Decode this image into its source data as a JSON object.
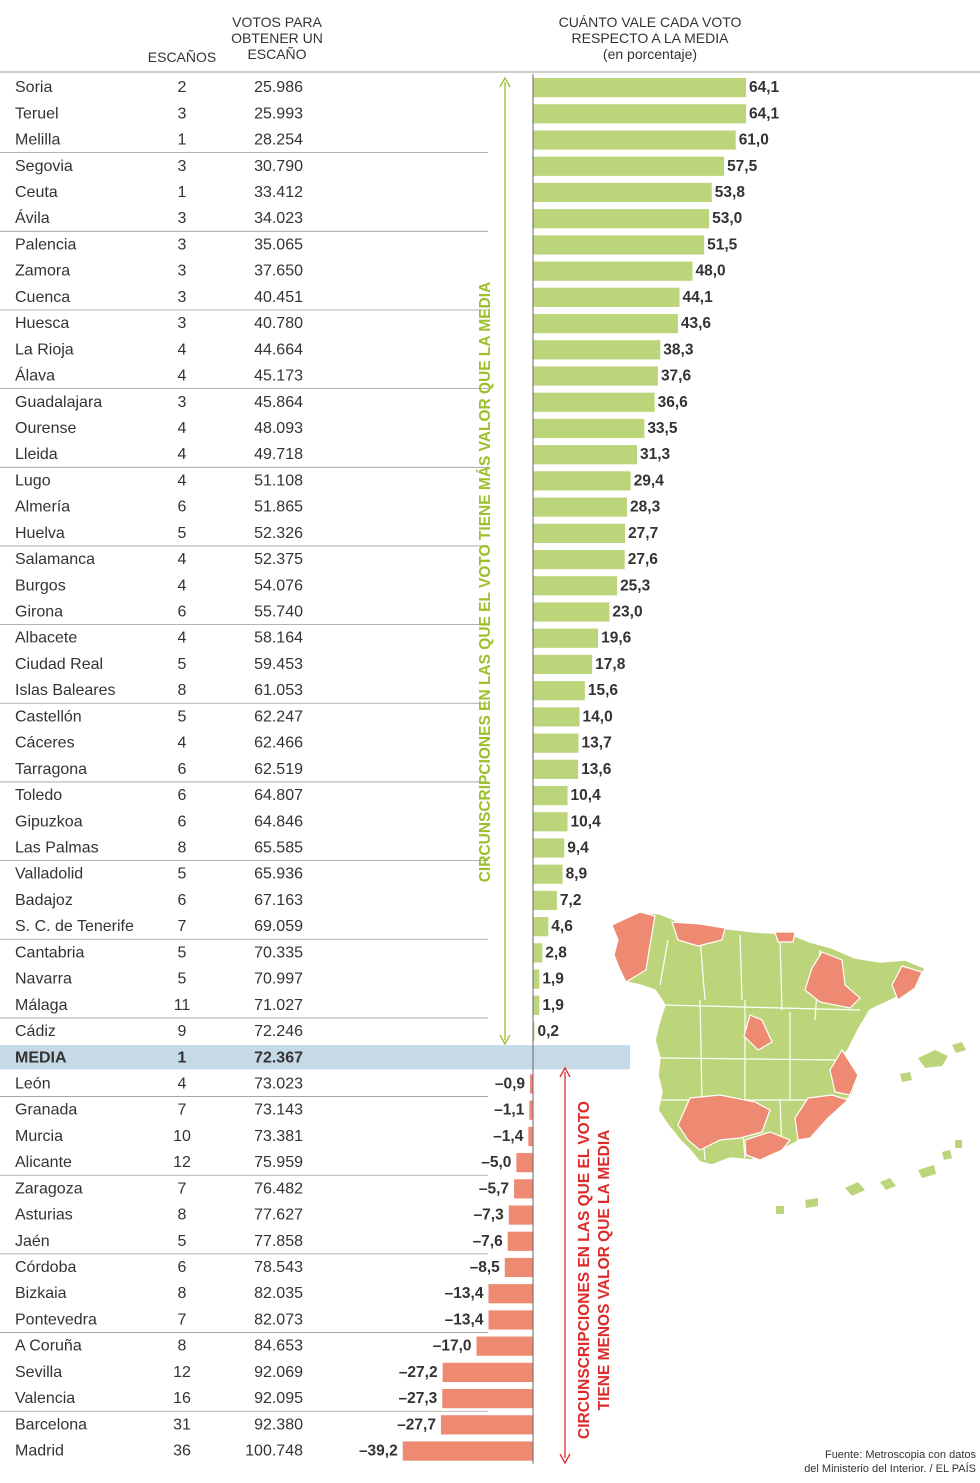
{
  "headers": {
    "escanos": "ESCAÑOS",
    "votos": "VOTOS PARA OBTENER UN ESCAÑO",
    "valor_title": "CUÁNTO VALE CADA VOTO RESPECTO A LA MEDIA",
    "valor_sub": "(en porcentaje)"
  },
  "side_labels": {
    "positive": "CIRCUNSCRIPCIONES EN LAS QUE EL VOTO TIENE MÁS VALOR QUE LA MEDIA",
    "negative_line1": "CIRCUNSCRIPCIONES EN LAS QUE EL VOTO",
    "negative_line2": "TIENE MENOS VALOR QUE LA MEDIA"
  },
  "source": {
    "line1": "Fuente: Metroscopia con datos",
    "line2": "del Ministerio del Interior. / EL PAÍS"
  },
  "colors": {
    "positive": "#bdd57a",
    "negative": "#ee8a72",
    "media_band": "#c6d9e6",
    "positive_text": "#9cbf2b",
    "negative_text": "#dd2b2b",
    "axis": "#666666"
  },
  "chart_data": {
    "type": "bar",
    "orientation": "horizontal",
    "title": "CUÁNTO VALE CADA VOTO RESPECTO A LA MEDIA",
    "xlabel": "(en porcentaje)",
    "xlim": [
      -39.2,
      64.1
    ],
    "columns": [
      "ESCAÑOS",
      "VOTOS PARA OBTENER UN ESCAÑO"
    ],
    "rows": [
      {
        "name": "Soria",
        "seats": "2",
        "votes": "25.986",
        "value": 64.1,
        "label": "64,1"
      },
      {
        "name": "Teruel",
        "seats": "3",
        "votes": "25.993",
        "value": 64.1,
        "label": "64,1"
      },
      {
        "name": "Melilla",
        "seats": "1",
        "votes": "28.254",
        "value": 61.0,
        "label": "61,0"
      },
      {
        "name": "Segovia",
        "seats": "3",
        "votes": "30.790",
        "value": 57.5,
        "label": "57,5"
      },
      {
        "name": "Ceuta",
        "seats": "1",
        "votes": "33.412",
        "value": 53.8,
        "label": "53,8"
      },
      {
        "name": "Ávila",
        "seats": "3",
        "votes": "34.023",
        "value": 53.0,
        "label": "53,0"
      },
      {
        "name": "Palencia",
        "seats": "3",
        "votes": "35.065",
        "value": 51.5,
        "label": "51,5"
      },
      {
        "name": "Zamora",
        "seats": "3",
        "votes": "37.650",
        "value": 48.0,
        "label": "48,0"
      },
      {
        "name": "Cuenca",
        "seats": "3",
        "votes": "40.451",
        "value": 44.1,
        "label": "44,1"
      },
      {
        "name": "Huesca",
        "seats": "3",
        "votes": "40.780",
        "value": 43.6,
        "label": "43,6"
      },
      {
        "name": "La Rioja",
        "seats": "4",
        "votes": "44.664",
        "value": 38.3,
        "label": "38,3"
      },
      {
        "name": "Álava",
        "seats": "4",
        "votes": "45.173",
        "value": 37.6,
        "label": "37,6"
      },
      {
        "name": "Guadalajara",
        "seats": "3",
        "votes": "45.864",
        "value": 36.6,
        "label": "36,6"
      },
      {
        "name": "Ourense",
        "seats": "4",
        "votes": "48.093",
        "value": 33.5,
        "label": "33,5"
      },
      {
        "name": "Lleida",
        "seats": "4",
        "votes": "49.718",
        "value": 31.3,
        "label": "31,3"
      },
      {
        "name": "Lugo",
        "seats": "4",
        "votes": "51.108",
        "value": 29.4,
        "label": "29,4"
      },
      {
        "name": "Almería",
        "seats": "6",
        "votes": "51.865",
        "value": 28.3,
        "label": "28,3"
      },
      {
        "name": "Huelva",
        "seats": "5",
        "votes": "52.326",
        "value": 27.7,
        "label": "27,7"
      },
      {
        "name": "Salamanca",
        "seats": "4",
        "votes": "52.375",
        "value": 27.6,
        "label": "27,6"
      },
      {
        "name": "Burgos",
        "seats": "4",
        "votes": "54.076",
        "value": 25.3,
        "label": "25,3"
      },
      {
        "name": "Girona",
        "seats": "6",
        "votes": "55.740",
        "value": 23.0,
        "label": "23,0"
      },
      {
        "name": "Albacete",
        "seats": "4",
        "votes": "58.164",
        "value": 19.6,
        "label": "19,6"
      },
      {
        "name": "Ciudad Real",
        "seats": "5",
        "votes": "59.453",
        "value": 17.8,
        "label": "17,8"
      },
      {
        "name": "Islas Baleares",
        "seats": "8",
        "votes": "61.053",
        "value": 15.6,
        "label": "15,6"
      },
      {
        "name": "Castellón",
        "seats": "5",
        "votes": "62.247",
        "value": 14.0,
        "label": "14,0"
      },
      {
        "name": "Cáceres",
        "seats": "4",
        "votes": "62.466",
        "value": 13.7,
        "label": "13,7"
      },
      {
        "name": "Tarragona",
        "seats": "6",
        "votes": "62.519",
        "value": 13.6,
        "label": "13,6"
      },
      {
        "name": "Toledo",
        "seats": "6",
        "votes": "64.807",
        "value": 10.4,
        "label": "10,4"
      },
      {
        "name": "Gipuzkoa",
        "seats": "6",
        "votes": "64.846",
        "value": 10.4,
        "label": "10,4"
      },
      {
        "name": "Las Palmas",
        "seats": "8",
        "votes": "65.585",
        "value": 9.4,
        "label": "9,4"
      },
      {
        "name": "Valladolid",
        "seats": "5",
        "votes": "65.936",
        "value": 8.9,
        "label": "8,9"
      },
      {
        "name": "Badajoz",
        "seats": "6",
        "votes": "67.163",
        "value": 7.2,
        "label": "7,2"
      },
      {
        "name": "S. C. de Tenerife",
        "seats": "7",
        "votes": "69.059",
        "value": 4.6,
        "label": "4,6"
      },
      {
        "name": "Cantabria",
        "seats": "5",
        "votes": "70.335",
        "value": 2.8,
        "label": "2,8"
      },
      {
        "name": "Navarra",
        "seats": "5",
        "votes": "70.997",
        "value": 1.9,
        "label": "1,9"
      },
      {
        "name": "Málaga",
        "seats": "11",
        "votes": "71.027",
        "value": 1.9,
        "label": "1,9"
      },
      {
        "name": "Cádiz",
        "seats": "9",
        "votes": "72.246",
        "value": 0.2,
        "label": "0,2"
      },
      {
        "name": "MEDIA",
        "seats": "1",
        "votes": "72.367",
        "value": 0,
        "label": "",
        "media": true
      },
      {
        "name": "León",
        "seats": "4",
        "votes": "73.023",
        "value": -0.9,
        "label": "–0,9"
      },
      {
        "name": "Granada",
        "seats": "7",
        "votes": "73.143",
        "value": -1.1,
        "label": "–1,1"
      },
      {
        "name": "Murcia",
        "seats": "10",
        "votes": "73.381",
        "value": -1.4,
        "label": "–1,4"
      },
      {
        "name": "Alicante",
        "seats": "12",
        "votes": "75.959",
        "value": -5.0,
        "label": "–5,0"
      },
      {
        "name": "Zaragoza",
        "seats": "7",
        "votes": "76.482",
        "value": -5.7,
        "label": "–5,7"
      },
      {
        "name": "Asturias",
        "seats": "8",
        "votes": "77.627",
        "value": -7.3,
        "label": "–7,3"
      },
      {
        "name": "Jaén",
        "seats": "5",
        "votes": "77.858",
        "value": -7.6,
        "label": "–7,6"
      },
      {
        "name": "Córdoba",
        "seats": "6",
        "votes": "78.543",
        "value": -8.5,
        "label": "–8,5"
      },
      {
        "name": "Bizkaia",
        "seats": "8",
        "votes": "82.035",
        "value": -13.4,
        "label": "–13,4"
      },
      {
        "name": "Pontevedra",
        "seats": "7",
        "votes": "82.073",
        "value": -13.4,
        "label": "–13,4"
      },
      {
        "name": "A Coruña",
        "seats": "8",
        "votes": "84.653",
        "value": -17.0,
        "label": "–17,0"
      },
      {
        "name": "Sevilla",
        "seats": "12",
        "votes": "92.069",
        "value": -27.2,
        "label": "–27,2"
      },
      {
        "name": "Valencia",
        "seats": "16",
        "votes": "92.095",
        "value": -27.3,
        "label": "–27,3"
      },
      {
        "name": "Barcelona",
        "seats": "31",
        "votes": "92.380",
        "value": -27.7,
        "label": "–27,7"
      },
      {
        "name": "Madrid",
        "seats": "36",
        "votes": "100.748",
        "value": -39.2,
        "label": "–39,2"
      }
    ]
  }
}
